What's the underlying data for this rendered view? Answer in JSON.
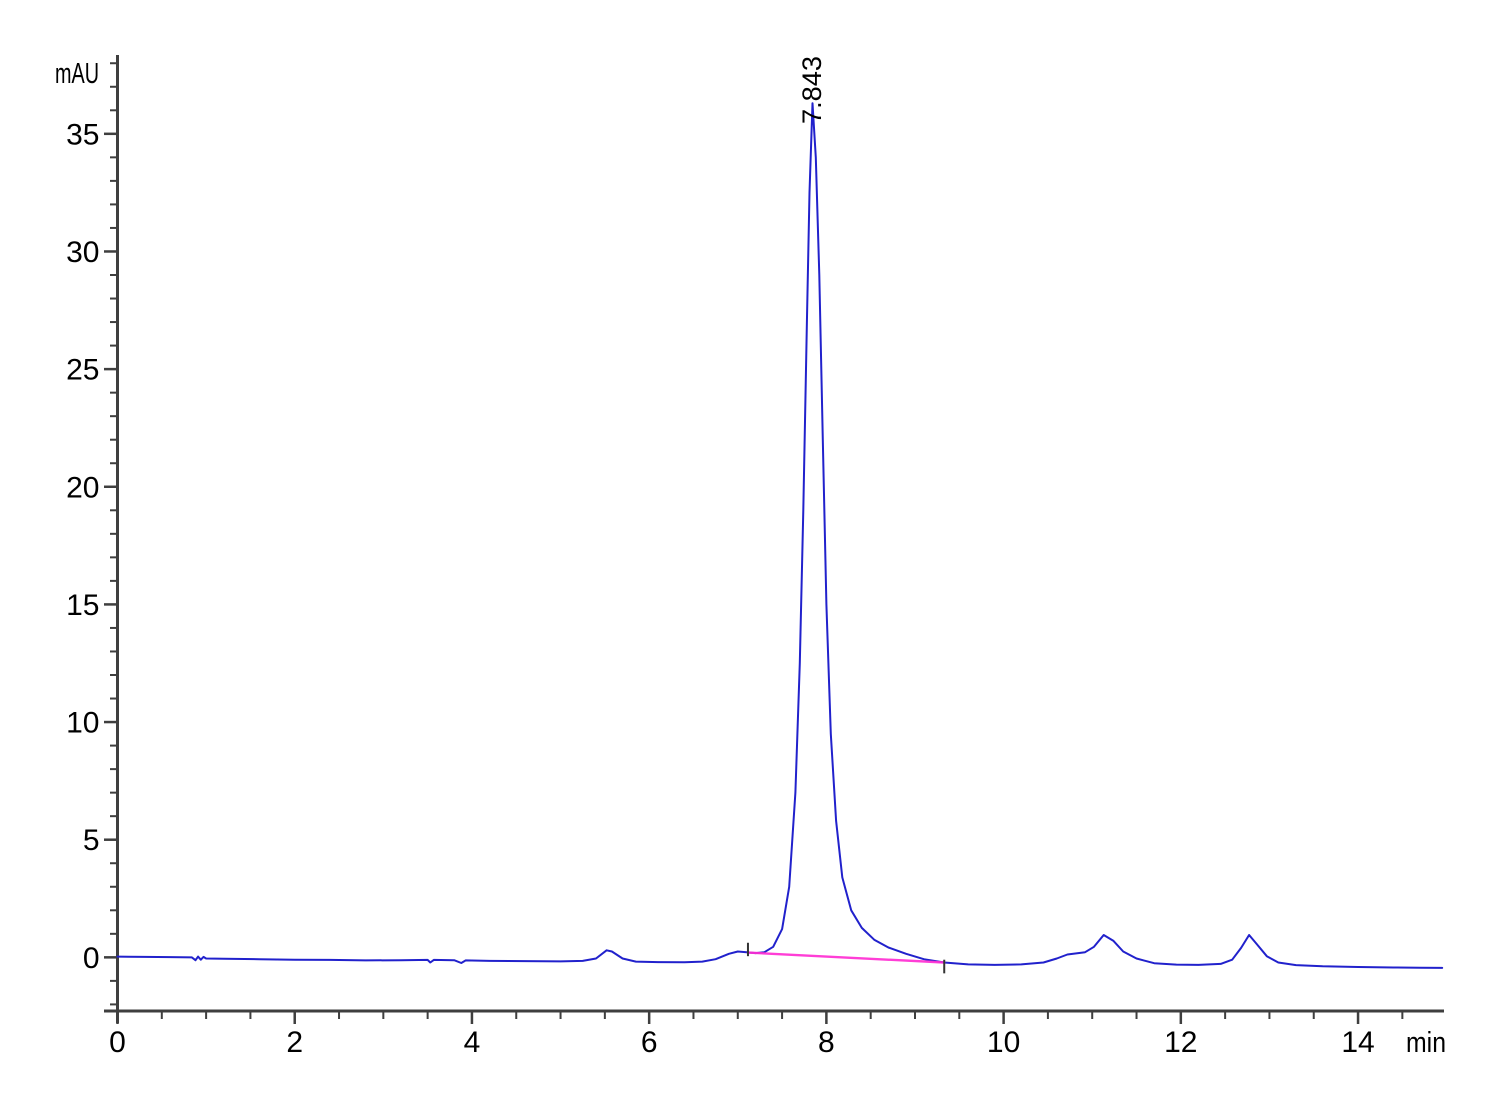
{
  "chart_data": {
    "type": "line",
    "title": "",
    "grid": false,
    "legend": "none",
    "x_axis": {
      "unit_label": "min",
      "range": [
        0,
        14.97
      ],
      "major_ticks": [
        0,
        2,
        4,
        6,
        8,
        10,
        12,
        14
      ],
      "minor_tick_step": 0.5,
      "minor_tick_max": 14.5
    },
    "y_axis": {
      "unit_label": "mAU",
      "range": [
        -2.28,
        38.35
      ],
      "major_ticks": [
        0,
        5,
        10,
        15,
        20,
        25,
        30,
        35
      ],
      "minor_tick_step": 1,
      "minor_tick_min": -2,
      "minor_tick_max": 38
    },
    "colors": {
      "signal": "#2121cc",
      "integration_baseline": "#ff2ed2",
      "axis": "#3f3f3f",
      "text": "#000000",
      "integration_mark": "#333333"
    },
    "peak_annotations": [
      {
        "label": "7.843",
        "retention_time_min": 7.843,
        "height_mau": 36.3
      }
    ],
    "integration_tick_marks": [
      {
        "time_min": 7.115,
        "from_mau": 0.05,
        "to_mau": 0.62
      },
      {
        "time_min": 9.33,
        "from_mau": -0.68,
        "to_mau": -0.1
      }
    ],
    "series": [
      {
        "name": "detector-signal",
        "color": "#2121cc",
        "points": [
          [
            0.0,
            0.03
          ],
          [
            0.3,
            0.02
          ],
          [
            0.6,
            0.01
          ],
          [
            0.84,
            0.0
          ],
          [
            0.88,
            -0.12
          ],
          [
            0.91,
            0.03
          ],
          [
            0.94,
            -0.1
          ],
          [
            0.97,
            0.02
          ],
          [
            1.0,
            -0.05
          ],
          [
            1.2,
            -0.06
          ],
          [
            1.6,
            -0.08
          ],
          [
            2.0,
            -0.1
          ],
          [
            2.4,
            -0.11
          ],
          [
            2.8,
            -0.13
          ],
          [
            3.2,
            -0.12
          ],
          [
            3.5,
            -0.11
          ],
          [
            3.53,
            -0.22
          ],
          [
            3.57,
            -0.11
          ],
          [
            3.8,
            -0.12
          ],
          [
            3.88,
            -0.24
          ],
          [
            3.93,
            -0.13
          ],
          [
            4.2,
            -0.15
          ],
          [
            4.6,
            -0.16
          ],
          [
            5.0,
            -0.17
          ],
          [
            5.25,
            -0.15
          ],
          [
            5.4,
            -0.05
          ],
          [
            5.52,
            0.3
          ],
          [
            5.58,
            0.25
          ],
          [
            5.7,
            -0.05
          ],
          [
            5.85,
            -0.18
          ],
          [
            6.1,
            -0.2
          ],
          [
            6.4,
            -0.21
          ],
          [
            6.6,
            -0.18
          ],
          [
            6.75,
            -0.08
          ],
          [
            6.9,
            0.15
          ],
          [
            7.0,
            0.25
          ],
          [
            7.1,
            0.22
          ],
          [
            7.2,
            0.18
          ],
          [
            7.3,
            0.22
          ],
          [
            7.4,
            0.45
          ],
          [
            7.5,
            1.2
          ],
          [
            7.58,
            3.0
          ],
          [
            7.65,
            7.0
          ],
          [
            7.7,
            12.5
          ],
          [
            7.74,
            19.0
          ],
          [
            7.78,
            27.0
          ],
          [
            7.81,
            32.5
          ],
          [
            7.843,
            36.3
          ],
          [
            7.88,
            34.0
          ],
          [
            7.92,
            29.0
          ],
          [
            7.96,
            22.0
          ],
          [
            8.0,
            15.0
          ],
          [
            8.05,
            9.5
          ],
          [
            8.11,
            5.8
          ],
          [
            8.18,
            3.4
          ],
          [
            8.28,
            2.0
          ],
          [
            8.4,
            1.25
          ],
          [
            8.54,
            0.75
          ],
          [
            8.7,
            0.42
          ],
          [
            8.9,
            0.15
          ],
          [
            9.1,
            -0.08
          ],
          [
            9.33,
            -0.22
          ],
          [
            9.6,
            -0.3
          ],
          [
            9.9,
            -0.32
          ],
          [
            10.2,
            -0.3
          ],
          [
            10.45,
            -0.22
          ],
          [
            10.6,
            -0.05
          ],
          [
            10.72,
            0.12
          ],
          [
            10.82,
            0.17
          ],
          [
            10.92,
            0.22
          ],
          [
            11.02,
            0.45
          ],
          [
            11.13,
            0.95
          ],
          [
            11.24,
            0.7
          ],
          [
            11.35,
            0.25
          ],
          [
            11.5,
            -0.05
          ],
          [
            11.7,
            -0.25
          ],
          [
            11.95,
            -0.31
          ],
          [
            12.2,
            -0.32
          ],
          [
            12.45,
            -0.28
          ],
          [
            12.58,
            -0.1
          ],
          [
            12.68,
            0.4
          ],
          [
            12.77,
            0.95
          ],
          [
            12.86,
            0.55
          ],
          [
            12.97,
            0.05
          ],
          [
            13.1,
            -0.22
          ],
          [
            13.3,
            -0.33
          ],
          [
            13.6,
            -0.38
          ],
          [
            14.0,
            -0.41
          ],
          [
            14.4,
            -0.43
          ],
          [
            14.7,
            -0.44
          ],
          [
            14.95,
            -0.45
          ]
        ]
      },
      {
        "name": "integration-baseline",
        "color": "#ff2ed2",
        "points": [
          [
            7.115,
            0.2
          ],
          [
            9.33,
            -0.22
          ]
        ]
      }
    ]
  }
}
